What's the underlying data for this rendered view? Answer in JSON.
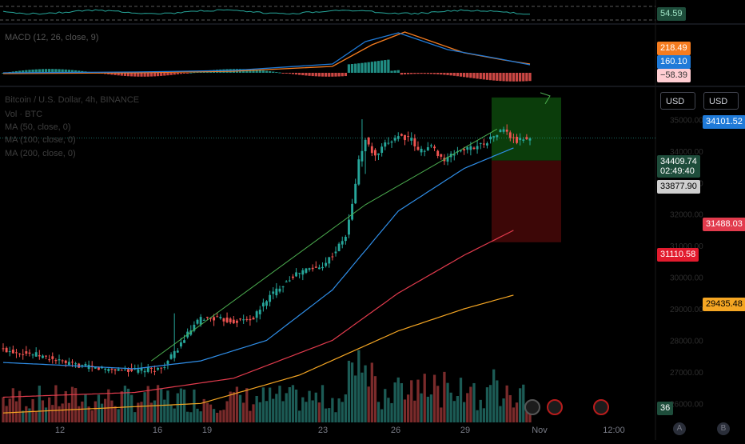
{
  "rsi": {
    "value_label": "54.59"
  },
  "macd": {
    "legend": "MACD (12, 26, close, 9)",
    "values": [
      "218.49",
      "160.10",
      "−58.39"
    ],
    "colors": [
      "#f57c1f",
      "#1f7ad8",
      "#ffcdd2"
    ]
  },
  "legend": {
    "title": "Bitcoin / U.S. Dollar, 4h, BINANCE",
    "lines": [
      "Vol · BTC",
      "MA (50, close, 0)",
      "MA (100, close, 0)",
      "MA (200, close, 0)"
    ]
  },
  "currency_buttons": [
    "USD",
    "USD"
  ],
  "scale_buttons": [
    "A",
    "B"
  ],
  "price_labels": {
    "ma50": "34101.52",
    "last": "34409.74",
    "countdown": "02:49:40",
    "prev": "33877.90",
    "ma100": "31488.03",
    "stop": "31110.58",
    "ma200": "29435.48",
    "volume": "36"
  },
  "colors": {
    "up": "#26a69a",
    "down": "#ef5350",
    "ma50": "#2f8ee8",
    "ma100": "#e23b4d",
    "ma200": "#f5a623",
    "trendline": "#4caf50",
    "target_zone": "#0b3d0b",
    "stop_zone": "#3d0707"
  },
  "chart_data": {
    "type": "candlestick",
    "title": "Bitcoin / U.S. Dollar, 4h, BINANCE",
    "x_labels": [
      "12",
      "16",
      "19",
      "23",
      "26",
      "29",
      "Nov",
      "12:00"
    ],
    "y_ticks": [
      26000,
      27000,
      28000,
      29000,
      30000,
      31000,
      32000,
      33000,
      34000,
      35000
    ],
    "ylim": [
      25400,
      36000
    ],
    "close_anchors": [
      [
        0,
        27700
      ],
      [
        10,
        27550
      ],
      [
        20,
        27250
      ],
      [
        30,
        27100
      ],
      [
        40,
        27050
      ],
      [
        48,
        27100
      ],
      [
        52,
        27600
      ],
      [
        56,
        28200
      ],
      [
        60,
        28700
      ],
      [
        64,
        28700
      ],
      [
        70,
        28600
      ],
      [
        76,
        28700
      ],
      [
        80,
        29300
      ],
      [
        84,
        29700
      ],
      [
        88,
        30050
      ],
      [
        92,
        30250
      ],
      [
        96,
        30300
      ],
      [
        100,
        30700
      ],
      [
        104,
        31300
      ],
      [
        106,
        32300
      ],
      [
        108,
        33700
      ],
      [
        110,
        34350
      ],
      [
        113,
        33800
      ],
      [
        116,
        34200
      ],
      [
        120,
        34500
      ],
      [
        124,
        34350
      ],
      [
        126,
        34000
      ],
      [
        130,
        34150
      ],
      [
        134,
        33700
      ],
      [
        138,
        34000
      ],
      [
        142,
        34100
      ],
      [
        146,
        34250
      ],
      [
        150,
        34550
      ],
      [
        152,
        34700
      ],
      [
        154,
        34450
      ],
      [
        156,
        34300
      ],
      [
        158,
        34400
      ],
      [
        160,
        34409.74
      ]
    ],
    "ma50": [
      [
        0,
        27300
      ],
      [
        40,
        27100
      ],
      [
        60,
        27350
      ],
      [
        80,
        28000
      ],
      [
        100,
        29600
      ],
      [
        120,
        32100
      ],
      [
        140,
        33450
      ],
      [
        155,
        34101.52
      ]
    ],
    "ma100": [
      [
        0,
        26200
      ],
      [
        40,
        26350
      ],
      [
        70,
        26800
      ],
      [
        100,
        28000
      ],
      [
        120,
        29500
      ],
      [
        140,
        30700
      ],
      [
        155,
        31488.03
      ]
    ],
    "ma200": [
      [
        0,
        25700
      ],
      [
        60,
        26000
      ],
      [
        90,
        26900
      ],
      [
        120,
        28300
      ],
      [
        140,
        29000
      ],
      [
        155,
        29435.48
      ]
    ],
    "trend": [
      [
        45,
        27350
      ],
      [
        110,
        32300
      ],
      [
        150,
        34700
      ]
    ],
    "position": {
      "entry": 33700,
      "target": 35700,
      "stop": 31110.58
    },
    "rsi_last": 54.59,
    "macd_last": {
      "macd": 218.49,
      "signal": 160.1,
      "hist": -58.39
    }
  }
}
